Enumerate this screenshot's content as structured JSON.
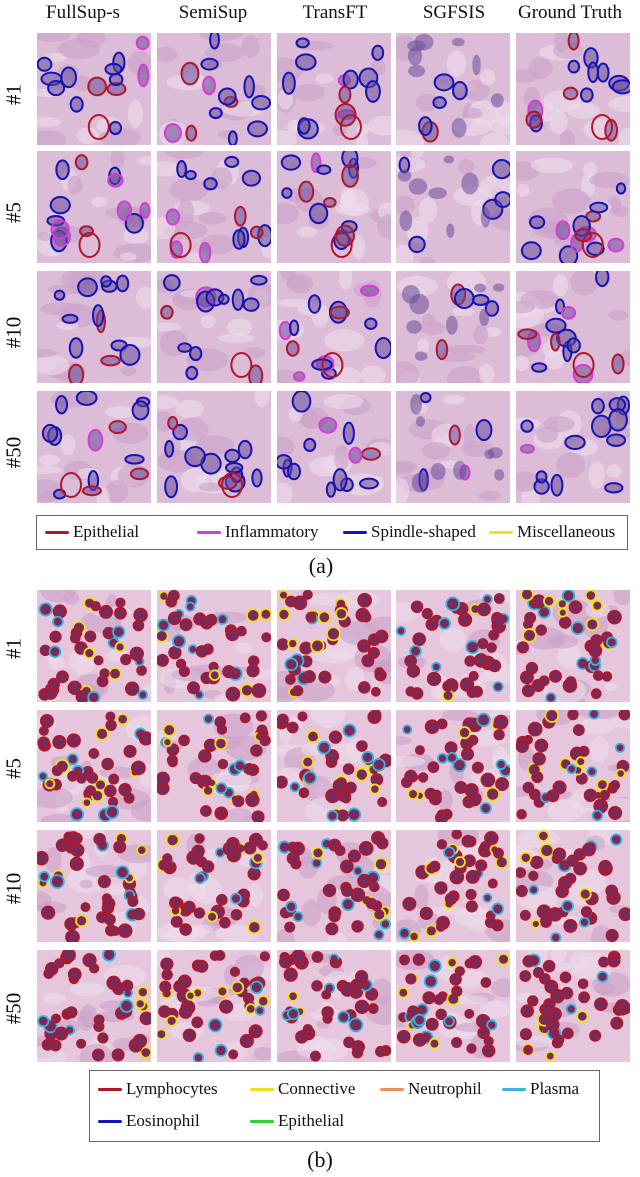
{
  "columns": [
    "FullSup-s",
    "SemiSup",
    "TransFT",
    "SGFSIS",
    "Ground Truth"
  ],
  "rows_a": [
    "#1",
    "#5",
    "#10",
    "#50"
  ],
  "rows_b": [
    "#1",
    "#5",
    "#10",
    "#50"
  ],
  "legend_a": [
    {
      "label": "Epithelial",
      "color": "#b0182a"
    },
    {
      "label": "Inflammatory",
      "color": "#d63bd6"
    },
    {
      "label": "Spindle-shaped",
      "color": "#1414b4"
    },
    {
      "label": "Miscellaneous",
      "color": "#f0e020"
    }
  ],
  "legend_b": [
    {
      "label": "Lymphocytes",
      "color": "#b0182a"
    },
    {
      "label": "Connective",
      "color": "#f0e020"
    },
    {
      "label": "Neutrophil",
      "color": "#e8905a"
    },
    {
      "label": "Plasma",
      "color": "#3ab4dc"
    },
    {
      "label": "Eosinophil",
      "color": "#1414b4"
    },
    {
      "label": "Epithelial",
      "color": "#30d030"
    }
  ],
  "caption_a": "(a)",
  "caption_b": "(b)"
}
